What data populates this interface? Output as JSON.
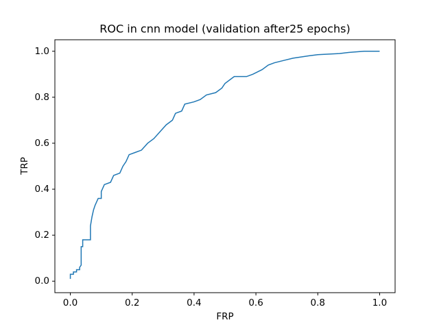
{
  "chart_data": {
    "type": "line",
    "title": "ROC in cnn model (validation after25 epochs)",
    "x_label": "FRP",
    "y_label": "TRP",
    "xlim": [
      -0.05,
      1.05
    ],
    "ylim": [
      -0.05,
      1.05
    ],
    "xticks": [
      {
        "value": 0,
        "label": "0.0"
      },
      {
        "value": 0.2,
        "label": "0.2"
      },
      {
        "value": 0.4,
        "label": "0.4"
      },
      {
        "value": 0.6,
        "label": "0.6"
      },
      {
        "value": 0.8,
        "label": "0.8"
      },
      {
        "value": 1,
        "label": "1.0"
      }
    ],
    "yticks": [
      {
        "value": 0,
        "label": "0.0"
      },
      {
        "value": 0.2,
        "label": "0.2"
      },
      {
        "value": 0.4,
        "label": "0.4"
      },
      {
        "value": 0.6,
        "label": "0.6"
      },
      {
        "value": 0.8,
        "label": "0.8"
      },
      {
        "value": 1,
        "label": "1.0"
      }
    ],
    "series": [
      {
        "color": "#1f77b4",
        "x": [
          0,
          0,
          0.01,
          0.01,
          0.02,
          0.02,
          0.03,
          0.03,
          0.035,
          0.035,
          0.04,
          0.04,
          0.065,
          0.065,
          0.07,
          0.075,
          0.08,
          0.09,
          0.1,
          0.1,
          0.11,
          0.13,
          0.14,
          0.16,
          0.17,
          0.18,
          0.19,
          0.21,
          0.23,
          0.25,
          0.27,
          0.29,
          0.31,
          0.33,
          0.34,
          0.36,
          0.37,
          0.4,
          0.42,
          0.44,
          0.47,
          0.49,
          0.5,
          0.52,
          0.53,
          0.57,
          0.59,
          0.62,
          0.64,
          0.66,
          0.69,
          0.72,
          0.77,
          0.8,
          0.87,
          0.9,
          0.95,
          1.0
        ],
        "values": [
          0.01,
          0.03,
          0.03,
          0.04,
          0.04,
          0.05,
          0.05,
          0.06,
          0.07,
          0.15,
          0.15,
          0.18,
          0.18,
          0.24,
          0.28,
          0.31,
          0.33,
          0.36,
          0.36,
          0.39,
          0.42,
          0.43,
          0.46,
          0.47,
          0.5,
          0.52,
          0.55,
          0.56,
          0.57,
          0.6,
          0.62,
          0.65,
          0.68,
          0.7,
          0.73,
          0.74,
          0.77,
          0.78,
          0.79,
          0.81,
          0.82,
          0.84,
          0.86,
          0.88,
          0.89,
          0.89,
          0.9,
          0.92,
          0.94,
          0.95,
          0.96,
          0.97,
          0.98,
          0.985,
          0.99,
          0.995,
          1.0,
          1.0
        ]
      }
    ]
  }
}
